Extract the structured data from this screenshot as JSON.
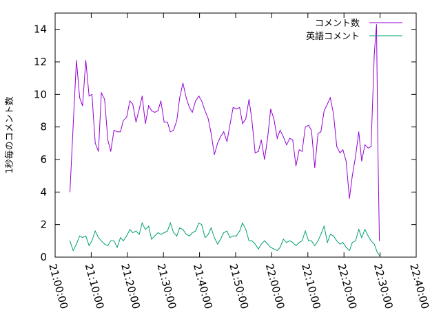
{
  "chart_data": {
    "type": "line",
    "title": "",
    "xlabel": "",
    "ylabel": "1秒毎のコメント数",
    "xlim": [
      0,
      100
    ],
    "ylim": [
      0,
      15
    ],
    "yticks": [
      0,
      2,
      4,
      6,
      8,
      10,
      12,
      14
    ],
    "xticks": [
      {
        "pos": 0,
        "label": "21:00:00"
      },
      {
        "pos": 10,
        "label": "21:10:00"
      },
      {
        "pos": 20,
        "label": "21:20:00"
      },
      {
        "pos": 30,
        "label": "21:30:00"
      },
      {
        "pos": 40,
        "label": "21:40:00"
      },
      {
        "pos": 50,
        "label": "21:50:00"
      },
      {
        "pos": 60,
        "label": "22:00:00"
      },
      {
        "pos": 70,
        "label": "22:10:00"
      },
      {
        "pos": 80,
        "label": "22:20:00"
      },
      {
        "pos": 90,
        "label": "22:30:00"
      },
      {
        "pos": 100,
        "label": "22:40:00"
      }
    ],
    "grid": false,
    "legend": "top-right",
    "series": [
      {
        "name": "コメント数",
        "color": "#9400d3",
        "points": [
          [
            4.1,
            4.0
          ],
          [
            5.0,
            8.1
          ],
          [
            5.9,
            12.1
          ],
          [
            6.8,
            9.8
          ],
          [
            7.6,
            9.3
          ],
          [
            8.5,
            12.1
          ],
          [
            9.4,
            9.9
          ],
          [
            10.2,
            10.0
          ],
          [
            11.1,
            7.0
          ],
          [
            12.0,
            6.5
          ],
          [
            12.8,
            10.1
          ],
          [
            13.7,
            9.7
          ],
          [
            14.6,
            7.2
          ],
          [
            15.4,
            6.5
          ],
          [
            16.3,
            7.8
          ],
          [
            17.2,
            7.7
          ],
          [
            18.1,
            7.7
          ],
          [
            18.9,
            8.4
          ],
          [
            19.8,
            8.6
          ],
          [
            20.7,
            9.6
          ],
          [
            21.5,
            9.4
          ],
          [
            22.4,
            8.3
          ],
          [
            23.3,
            9.1
          ],
          [
            24.1,
            9.9
          ],
          [
            25.0,
            8.2
          ],
          [
            25.9,
            9.3
          ],
          [
            26.7,
            9.0
          ],
          [
            27.6,
            8.9
          ],
          [
            28.5,
            9.0
          ],
          [
            29.3,
            9.6
          ],
          [
            30.2,
            8.3
          ],
          [
            31.1,
            8.3
          ],
          [
            31.9,
            7.7
          ],
          [
            32.8,
            7.8
          ],
          [
            33.7,
            8.4
          ],
          [
            34.5,
            9.8
          ],
          [
            35.4,
            10.7
          ],
          [
            36.3,
            9.8
          ],
          [
            37.2,
            9.2
          ],
          [
            38.0,
            8.9
          ],
          [
            38.9,
            9.6
          ],
          [
            39.8,
            9.9
          ],
          [
            40.6,
            9.6
          ],
          [
            41.5,
            9.0
          ],
          [
            42.4,
            8.5
          ],
          [
            43.2,
            7.6
          ],
          [
            44.1,
            6.3
          ],
          [
            45.0,
            7.0
          ],
          [
            45.8,
            7.4
          ],
          [
            46.7,
            7.7
          ],
          [
            47.6,
            7.1
          ],
          [
            48.4,
            8.1
          ],
          [
            49.3,
            9.2
          ],
          [
            50.2,
            9.1
          ],
          [
            51.1,
            9.2
          ],
          [
            51.9,
            8.2
          ],
          [
            52.8,
            8.5
          ],
          [
            53.7,
            9.7
          ],
          [
            54.5,
            8.4
          ],
          [
            55.4,
            6.4
          ],
          [
            56.3,
            6.5
          ],
          [
            57.1,
            7.2
          ],
          [
            58.0,
            6.0
          ],
          [
            58.9,
            7.4
          ],
          [
            59.7,
            9.1
          ],
          [
            60.6,
            8.5
          ],
          [
            61.5,
            7.3
          ],
          [
            62.3,
            7.8
          ],
          [
            63.2,
            7.4
          ],
          [
            64.1,
            6.9
          ],
          [
            65.0,
            7.3
          ],
          [
            65.8,
            7.2
          ],
          [
            66.7,
            5.6
          ],
          [
            67.6,
            6.6
          ],
          [
            68.4,
            6.5
          ],
          [
            69.3,
            8.0
          ],
          [
            70.2,
            8.1
          ],
          [
            71.0,
            7.8
          ],
          [
            71.9,
            5.5
          ],
          [
            72.8,
            7.6
          ],
          [
            73.6,
            7.7
          ],
          [
            74.5,
            9.0
          ],
          [
            75.4,
            9.4
          ],
          [
            76.2,
            9.8
          ],
          [
            77.1,
            8.8
          ],
          [
            78.0,
            6.8
          ],
          [
            78.9,
            6.4
          ],
          [
            79.7,
            6.6
          ],
          [
            80.6,
            5.9
          ],
          [
            81.5,
            3.6
          ],
          [
            82.3,
            5.0
          ],
          [
            83.2,
            6.2
          ],
          [
            84.1,
            7.7
          ],
          [
            84.9,
            5.9
          ],
          [
            85.8,
            6.9
          ],
          [
            86.7,
            6.7
          ],
          [
            87.5,
            6.8
          ],
          [
            88.4,
            12.5
          ],
          [
            89.0,
            14.3
          ],
          [
            89.4,
            6.5
          ],
          [
            89.8,
            1.0
          ]
        ]
      },
      {
        "name": "英語コメント",
        "color": "#009e73",
        "points": [
          [
            4.1,
            1.0
          ],
          [
            5.0,
            0.4
          ],
          [
            5.9,
            0.8
          ],
          [
            6.8,
            1.3
          ],
          [
            7.6,
            1.2
          ],
          [
            8.5,
            1.3
          ],
          [
            9.4,
            0.7
          ],
          [
            10.2,
            1.0
          ],
          [
            11.1,
            1.6
          ],
          [
            12.0,
            1.2
          ],
          [
            12.8,
            1.0
          ],
          [
            13.7,
            0.8
          ],
          [
            14.6,
            0.7
          ],
          [
            15.4,
            1.0
          ],
          [
            16.3,
            1.0
          ],
          [
            17.2,
            0.6
          ],
          [
            18.1,
            1.2
          ],
          [
            18.9,
            1.0
          ],
          [
            19.8,
            1.3
          ],
          [
            20.7,
            1.7
          ],
          [
            21.5,
            1.5
          ],
          [
            22.4,
            1.6
          ],
          [
            23.3,
            1.4
          ],
          [
            24.1,
            2.1
          ],
          [
            25.0,
            1.7
          ],
          [
            25.9,
            1.9
          ],
          [
            26.7,
            1.1
          ],
          [
            27.6,
            1.3
          ],
          [
            28.5,
            1.5
          ],
          [
            29.3,
            1.4
          ],
          [
            30.2,
            1.5
          ],
          [
            31.1,
            1.6
          ],
          [
            31.9,
            2.1
          ],
          [
            32.8,
            1.5
          ],
          [
            33.7,
            1.3
          ],
          [
            34.5,
            1.8
          ],
          [
            35.4,
            1.7
          ],
          [
            36.3,
            1.4
          ],
          [
            37.2,
            1.3
          ],
          [
            38.0,
            1.5
          ],
          [
            38.9,
            1.6
          ],
          [
            39.8,
            2.1
          ],
          [
            40.6,
            2.0
          ],
          [
            41.5,
            1.2
          ],
          [
            42.4,
            1.4
          ],
          [
            43.2,
            1.8
          ],
          [
            44.1,
            1.2
          ],
          [
            45.0,
            0.8
          ],
          [
            45.8,
            1.1
          ],
          [
            46.7,
            1.5
          ],
          [
            47.6,
            1.6
          ],
          [
            48.4,
            1.2
          ],
          [
            49.3,
            1.3
          ],
          [
            50.2,
            1.3
          ],
          [
            51.1,
            1.6
          ],
          [
            51.9,
            2.1
          ],
          [
            52.8,
            1.7
          ],
          [
            53.7,
            1.0
          ],
          [
            54.5,
            1.0
          ],
          [
            55.4,
            0.8
          ],
          [
            56.3,
            0.5
          ],
          [
            57.1,
            0.8
          ],
          [
            58.0,
            1.0
          ],
          [
            58.9,
            0.8
          ],
          [
            59.7,
            0.6
          ],
          [
            60.6,
            0.5
          ],
          [
            61.5,
            0.4
          ],
          [
            62.3,
            0.6
          ],
          [
            63.2,
            1.1
          ],
          [
            64.1,
            0.9
          ],
          [
            65.0,
            1.0
          ],
          [
            65.8,
            0.9
          ],
          [
            66.7,
            0.7
          ],
          [
            67.6,
            0.9
          ],
          [
            68.4,
            1.0
          ],
          [
            69.3,
            1.6
          ],
          [
            70.2,
            1.0
          ],
          [
            71.0,
            1.0
          ],
          [
            71.9,
            0.7
          ],
          [
            72.8,
            1.0
          ],
          [
            73.6,
            1.4
          ],
          [
            74.5,
            1.9
          ],
          [
            75.4,
            0.9
          ],
          [
            76.2,
            1.4
          ],
          [
            77.1,
            1.3
          ],
          [
            78.0,
            1.0
          ],
          [
            78.9,
            0.8
          ],
          [
            79.7,
            0.9
          ],
          [
            80.6,
            0.6
          ],
          [
            81.5,
            0.4
          ],
          [
            82.3,
            0.9
          ],
          [
            83.2,
            1.0
          ],
          [
            84.1,
            1.7
          ],
          [
            84.9,
            1.2
          ],
          [
            85.8,
            1.7
          ],
          [
            86.7,
            1.3
          ],
          [
            87.5,
            1.0
          ],
          [
            88.4,
            0.8
          ],
          [
            89.2,
            0.3
          ],
          [
            89.8,
            0.1
          ]
        ]
      }
    ]
  }
}
